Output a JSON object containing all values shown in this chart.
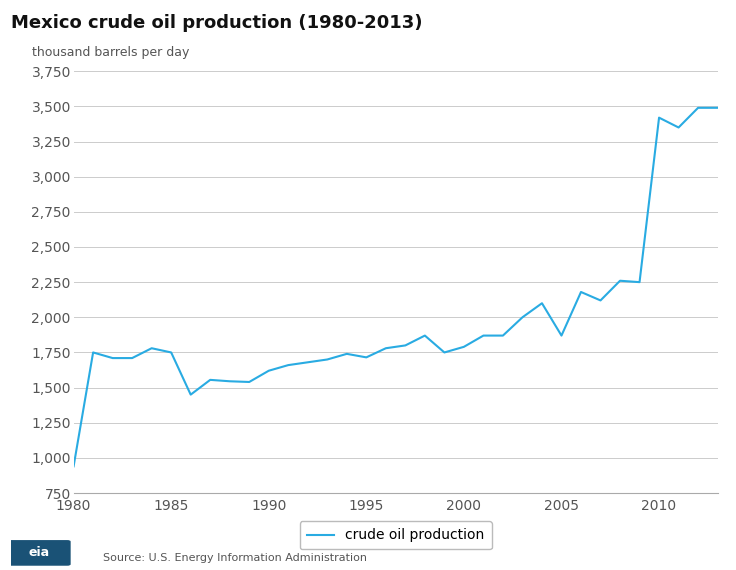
{
  "title": "Mexico crude oil production (1980-2013)",
  "ylabel": "thousand barrels per day",
  "line_color": "#29ABE2",
  "line_label": "crude oil production",
  "background_color": "#ffffff",
  "grid_color": "#cccccc",
  "source_text": "Source: U.S. Energy Information Administration",
  "ylim": [
    750,
    3750
  ],
  "xlim": [
    1980,
    2013
  ],
  "yticks": [
    750,
    1000,
    1250,
    1500,
    1750,
    2000,
    2250,
    2500,
    2750,
    3000,
    3250,
    3500,
    3750
  ],
  "xticks": [
    1980,
    1985,
    1990,
    1995,
    2000,
    2005,
    2010
  ],
  "years": [
    1980,
    1981,
    1982,
    1983,
    1984,
    1985,
    1986,
    1987,
    1988,
    1989,
    1990,
    1991,
    1992,
    1993,
    1994,
    1995,
    1996,
    1997,
    1998,
    1999,
    2000,
    2001,
    2002,
    2003,
    2004,
    2005,
    2006,
    2007,
    2008,
    2009,
    2010,
    2011,
    2012,
    2013
  ],
  "values": [
    940,
    1750,
    1710,
    1710,
    1780,
    1750,
    1450,
    1555,
    1545,
    1540,
    1620,
    1660,
    1680,
    1700,
    1740,
    1715,
    1780,
    1800,
    1870,
    1750,
    1790,
    1870,
    1870,
    2000,
    2100,
    1870,
    2180,
    2120,
    2260,
    2250,
    3420,
    3350,
    3490,
    3490
  ],
  "title_fontsize": 13,
  "tick_fontsize": 10,
  "legend_fontsize": 10
}
